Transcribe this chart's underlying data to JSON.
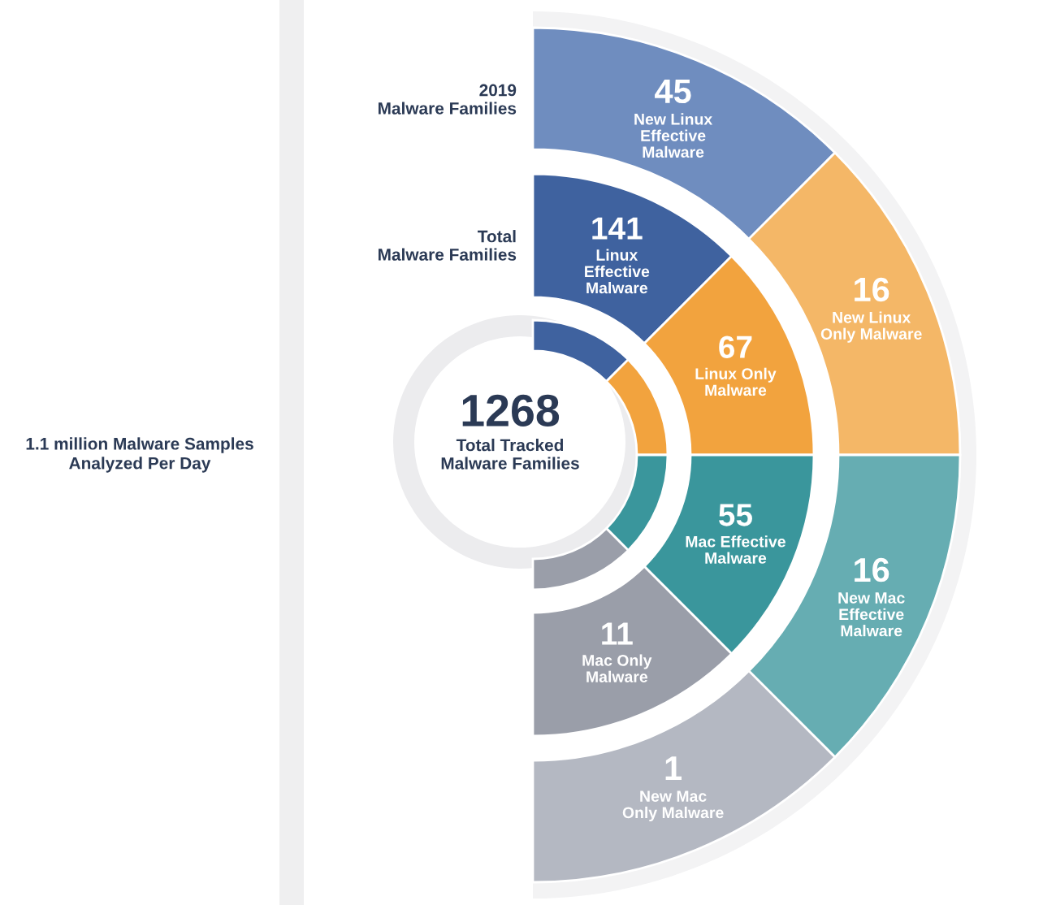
{
  "chart_data": [
    {
      "type": "other",
      "title": "2019\nMalware Families",
      "categories": [
        "New Linux\nEffective\nMalware",
        "New Linux\nOnly Malware",
        "New Mac\nEffective\nMalware",
        "New Mac\nOnly Malware"
      ],
      "values": [
        45,
        16,
        16,
        1
      ],
      "data_labels": true,
      "colors": [
        "#6f8dbf",
        "#f4b767",
        "#66adb2",
        "#b4b8c2"
      ]
    },
    {
      "type": "other",
      "title": "Total\nMalware Families",
      "categories": [
        "Linux\nEffective\nMalware",
        "Linux Only\nMalware",
        "Mac Effective\nMalware",
        "Mac Only\nMalware"
      ],
      "values": [
        141,
        67,
        55,
        11
      ],
      "data_labels": true,
      "colors": [
        "#3f629f",
        "#f2a33e",
        "#3a969c",
        "#9a9ea9"
      ]
    },
    {
      "type": "other",
      "categories": [
        "Total Tracked\nMalware Families"
      ],
      "values": [
        1268
      ],
      "data_labels": true,
      "annotations": [
        "1.1 million Malware Samples\nAnalyzed Per Day"
      ]
    }
  ]
}
